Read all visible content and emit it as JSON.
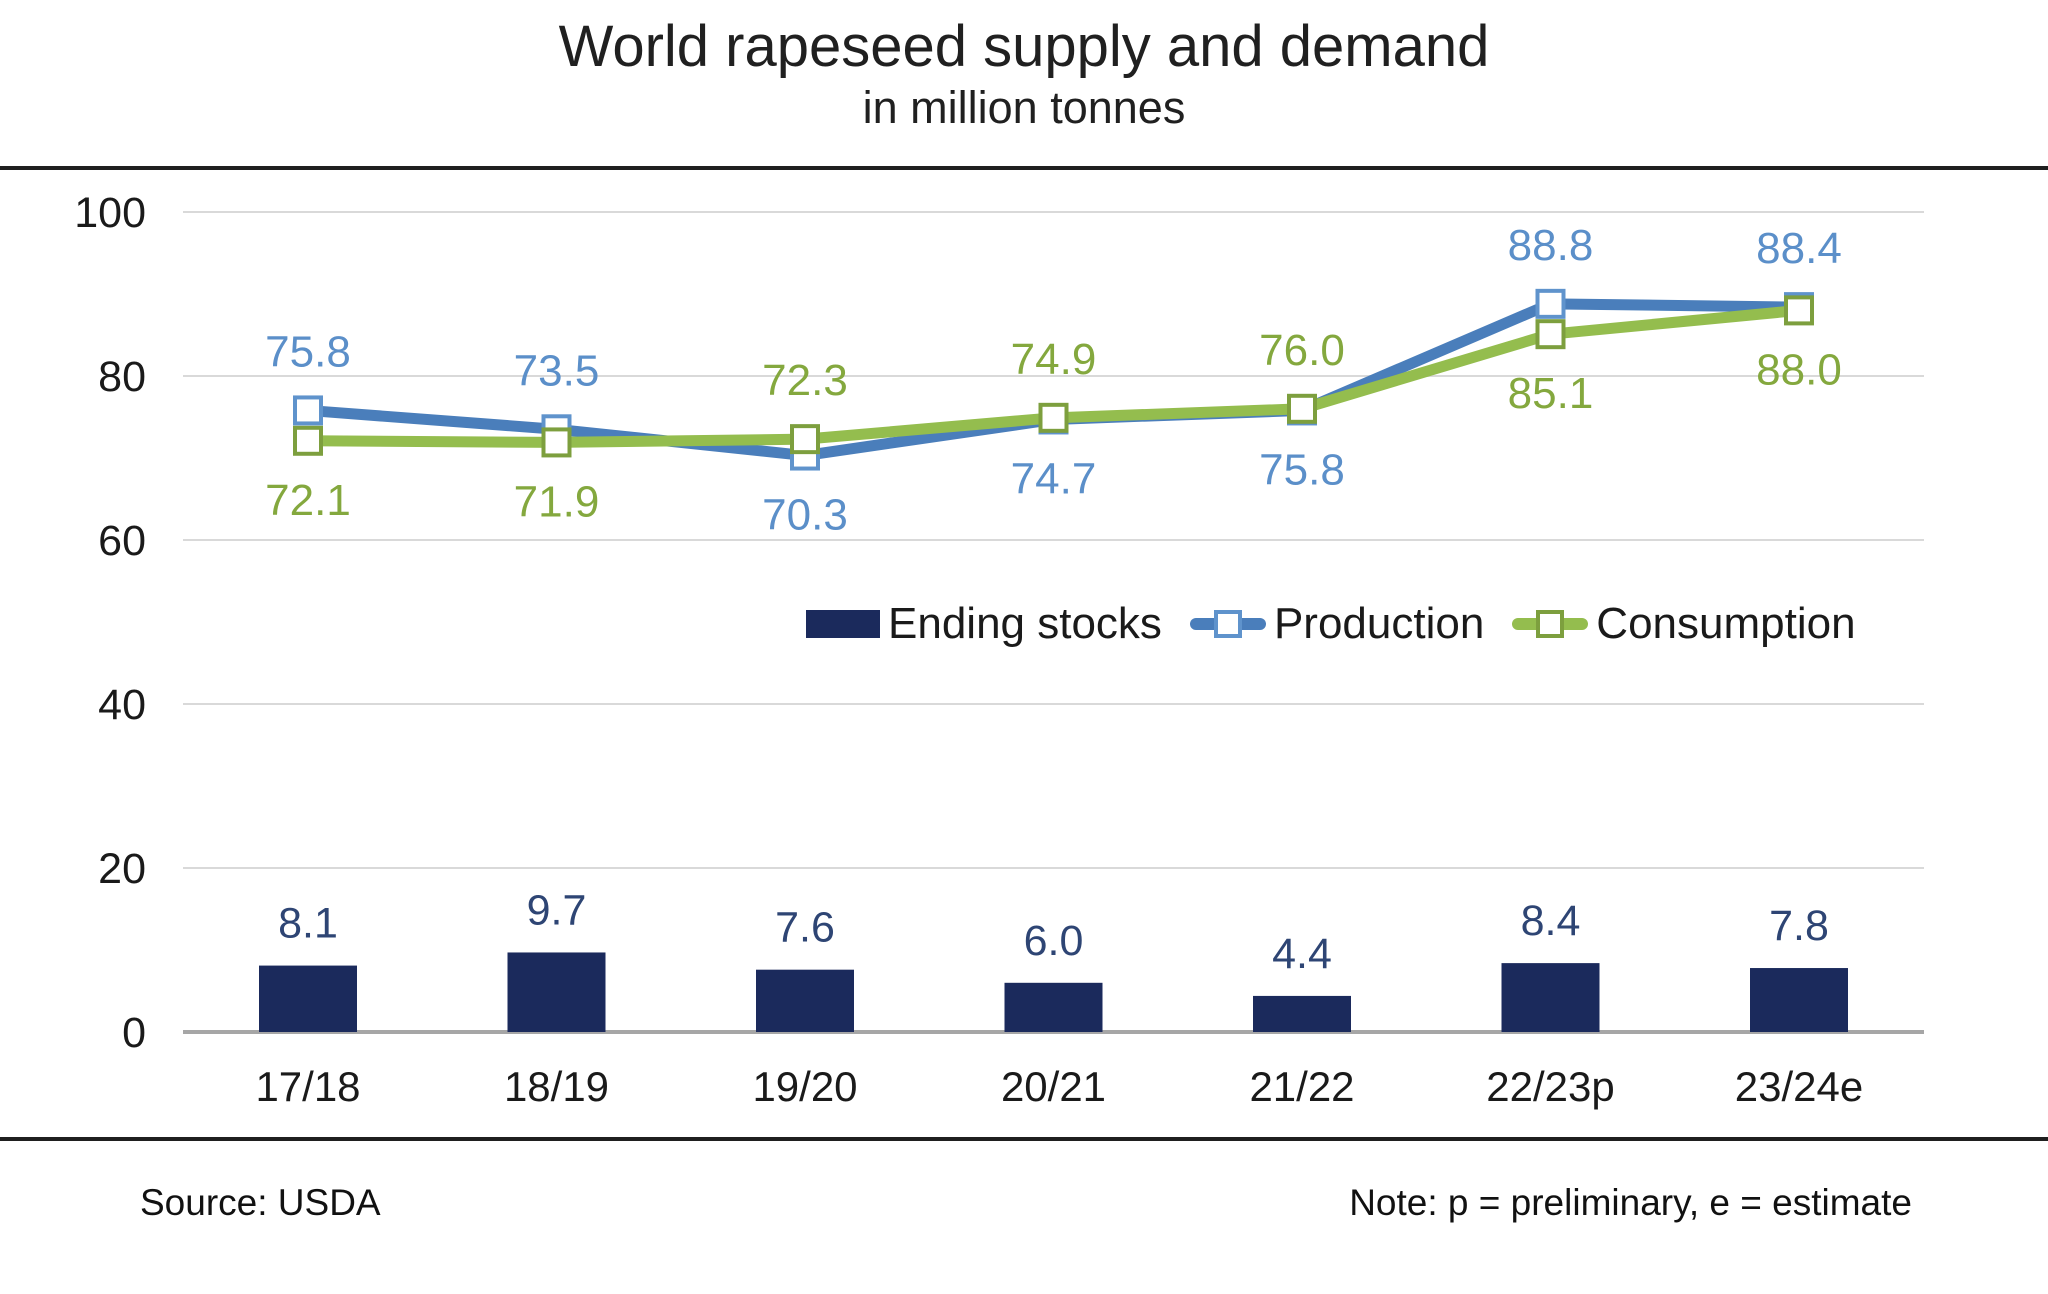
{
  "header": {
    "title": "World rapeseed supply and demand",
    "subtitle": "in million tonnes"
  },
  "footer": {
    "source": "Source: USDA",
    "note": "Note: p = preliminary, e = estimate"
  },
  "colors": {
    "background": "#ffffff",
    "text": "#1a1a1a",
    "rule": "#1f1f1f",
    "gridline": "#d9d9d9",
    "axis_line": "#a6a6a6",
    "bar": "#1b2a5c",
    "bar_label": "#2e4574",
    "production_line": "#4a7ebb",
    "production_marker_stroke": "#5f93cc",
    "production_label": "#5b8fc9",
    "consumption_line": "#94bd4e",
    "consumption_marker_stroke": "#7d9f3e",
    "consumption_label": "#84a83e"
  },
  "chart_data": {
    "type": "bar",
    "subtype": "combo-bar-line",
    "title": "World rapeseed supply and demand",
    "subtitle": "in million tonnes",
    "xlabel": "",
    "ylabel": "",
    "grid": "horizontal",
    "legend_position": "inside-center-right",
    "y_axis": {
      "min": 0,
      "max": 100,
      "ticks": [
        0,
        20,
        40,
        60,
        80,
        100
      ]
    },
    "categories": [
      "17/18",
      "18/19",
      "19/20",
      "20/21",
      "21/22",
      "22/23p",
      "23/24e"
    ],
    "series": [
      {
        "name": "Ending stocks",
        "type": "bar",
        "color": "#1b2a5c",
        "label_color": "#2e4574",
        "values": [
          8.1,
          9.7,
          7.6,
          6.0,
          4.4,
          8.4,
          7.8
        ],
        "labels": [
          "8.1",
          "9.7",
          "7.6",
          "6.0",
          "4.4",
          "8.4",
          "7.8"
        ]
      },
      {
        "name": "Production",
        "type": "line",
        "color": "#4a7ebb",
        "marker": "open-square",
        "marker_stroke": "#5f93cc",
        "label_color": "#5b8fc9",
        "values": [
          75.8,
          73.5,
          70.3,
          74.7,
          75.8,
          88.8,
          88.4
        ],
        "labels": [
          "75.8",
          "73.5",
          "70.3",
          "74.7",
          "75.8",
          "88.8",
          "88.4"
        ],
        "label_position": [
          "above",
          "above",
          "below",
          "below",
          "below",
          "above",
          "above"
        ]
      },
      {
        "name": "Consumption",
        "type": "line",
        "color": "#94bd4e",
        "marker": "open-square",
        "marker_stroke": "#7d9f3e",
        "label_color": "#84a83e",
        "values": [
          72.1,
          71.9,
          72.3,
          74.9,
          76.0,
          85.1,
          88.0
        ],
        "labels": [
          "72.1",
          "71.9",
          "72.3",
          "74.9",
          "76.0",
          "85.1",
          "88.0"
        ],
        "label_position": [
          "below",
          "below",
          "above",
          "above",
          "above",
          "below",
          "below"
        ]
      }
    ]
  }
}
